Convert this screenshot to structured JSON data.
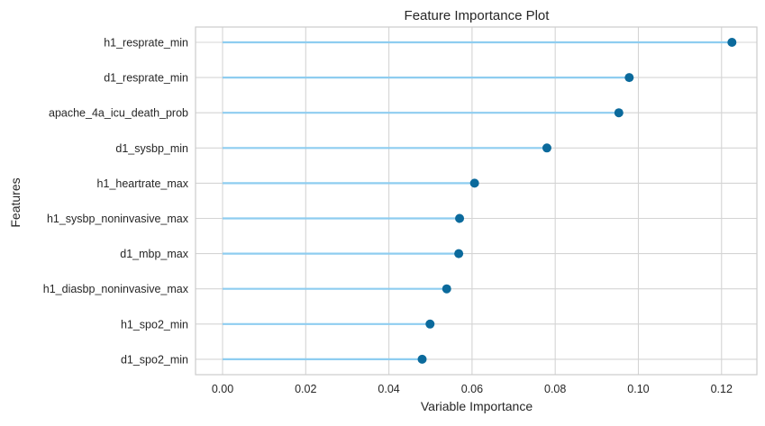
{
  "chart_data": {
    "type": "lollipop",
    "title": "Feature Importance Plot",
    "xlabel": "Variable Importance",
    "ylabel": "Features",
    "xlim": [
      -0.0065,
      0.1285
    ],
    "xticks": [
      0.0,
      0.02,
      0.04,
      0.06,
      0.08,
      0.1,
      0.12
    ],
    "xtick_labels": [
      "0.00",
      "0.02",
      "0.04",
      "0.06",
      "0.08",
      "0.10",
      "0.12"
    ],
    "grid": true,
    "categories": [
      "h1_resprate_min",
      "d1_resprate_min",
      "apache_4a_icu_death_prob",
      "d1_sysbp_min",
      "h1_heartrate_max",
      "h1_sysbp_noninvasive_max",
      "d1_mbp_max",
      "h1_diasbp_noninvasive_max",
      "h1_spo2_min",
      "d1_spo2_min"
    ],
    "values": [
      0.1225,
      0.0978,
      0.0953,
      0.078,
      0.0606,
      0.057,
      0.0568,
      0.0539,
      0.0499,
      0.048
    ],
    "colors": {
      "stem": "#8ecdf0",
      "marker": "#0b6a9c",
      "grid": "#d4d4d4",
      "frame": "#cccccc"
    }
  }
}
